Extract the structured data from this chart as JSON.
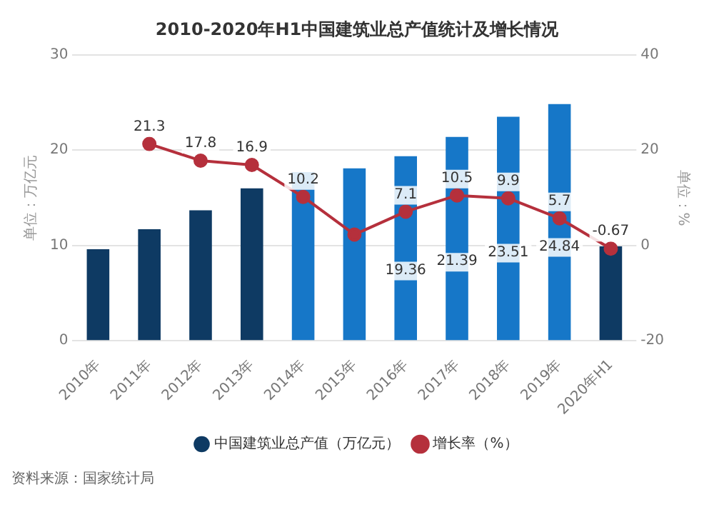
{
  "chart_data": {
    "type": "bar",
    "title": "2010-2020年H1中国建筑业总产值统计及增长情况",
    "ylabel": "单位：万亿元",
    "y2label": "单位：%",
    "categories": [
      "2010年",
      "2011年",
      "2012年",
      "2013年",
      "2014年",
      "2015年",
      "2016年",
      "2017年",
      "2018年",
      "2019年",
      "2020年H1"
    ],
    "series": [
      {
        "name": "中国建筑业总产值（万亿元）",
        "colors": [
          "#0e3a63",
          "#0e3a63",
          "#0e3a63",
          "#0e3a63",
          "#1677c8",
          "#1677c8",
          "#1677c8",
          "#1677c8",
          "#1677c8",
          "#1677c8",
          "#0e3a63"
        ],
        "values": [
          9.6,
          11.7,
          13.7,
          16.0,
          17.7,
          18.1,
          19.36,
          21.39,
          23.51,
          24.84,
          9.9
        ],
        "value_labels": [
          null,
          null,
          null,
          null,
          null,
          null,
          "19.36",
          "21.39",
          "23.51",
          "24.84",
          null
        ]
      },
      {
        "name": "增长率（%）",
        "type": "line",
        "axis": "y2",
        "color": "#b5303c",
        "marker": "circle",
        "values": [
          null,
          21.3,
          17.8,
          16.9,
          10.2,
          2.3,
          7.1,
          10.5,
          9.9,
          5.7,
          -0.67
        ],
        "value_labels": [
          null,
          "21.3",
          "17.8",
          "16.9",
          "10.2",
          null,
          "7.1",
          "10.5",
          "9.9",
          "5.7",
          "-0.67"
        ]
      }
    ],
    "ylim": [
      0,
      30
    ],
    "yticks": [
      0,
      10,
      20,
      30
    ],
    "y2lim": [
      -20,
      40
    ],
    "y2ticks": [
      -20,
      0,
      20,
      40
    ],
    "grid": "y",
    "legend": "bottom",
    "annotations": [
      "资料来源：国家统计局"
    ]
  }
}
